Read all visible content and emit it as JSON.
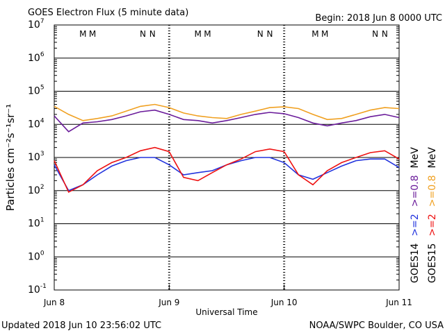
{
  "chart_data": {
    "type": "line",
    "title": "GOES Electron Flux (5 minute data)",
    "subtitle": "Begin: 2018 Jun 8 0000 UTC",
    "xlabel": "Universal Time",
    "ylabel": "Particles cm⁻²s⁻¹sr⁻¹",
    "footer_left": "Updated 2018 Jun 10 23:56:02 UTC",
    "footer_right": "NOAA/SWPC Boulder, CO USA",
    "log_scale": true,
    "grid": true,
    "threshold": 1000,
    "xlim": [
      0,
      72
    ],
    "xticks": [
      {
        "value": 0,
        "label": "Jun 8"
      },
      {
        "value": 24,
        "label": "Jun 9"
      },
      {
        "value": 48,
        "label": "Jun 10"
      },
      {
        "value": 72,
        "label": "Jun 11"
      }
    ],
    "ylim": [
      0.1,
      10000000
    ],
    "yticks": [
      {
        "value": 10000000,
        "label": "10",
        "exponent": "7"
      },
      {
        "value": 1000000,
        "label": "10",
        "exponent": "6"
      },
      {
        "value": 100000,
        "label": "10",
        "exponent": "5"
      },
      {
        "value": 10000,
        "label": "10",
        "exponent": "4"
      },
      {
        "value": 1000,
        "label": "10",
        "exponent": "3"
      },
      {
        "value": 100,
        "label": "10",
        "exponent": "2"
      },
      {
        "value": 10,
        "label": "10",
        "exponent": "1"
      },
      {
        "value": 1,
        "label": "10",
        "exponent": "0"
      },
      {
        "value": 0.1,
        "label": "10",
        "exponent": "-1"
      }
    ],
    "markers": [
      {
        "label": "M",
        "color": "#2222cc",
        "x": 6
      },
      {
        "label": "M",
        "color": "#dd1111",
        "x": 8
      },
      {
        "label": "N",
        "color": "#2222cc",
        "x": 18.5
      },
      {
        "label": "N",
        "color": "#dd1111",
        "x": 20.5
      },
      {
        "label": "M",
        "color": "#2222cc",
        "x": 30
      },
      {
        "label": "M",
        "color": "#dd1111",
        "x": 32
      },
      {
        "label": "N",
        "color": "#2222cc",
        "x": 43
      },
      {
        "label": "N",
        "color": "#dd1111",
        "x": 45
      },
      {
        "label": "M",
        "color": "#2222cc",
        "x": 54.5
      },
      {
        "label": "M",
        "color": "#dd1111",
        "x": 56.5
      },
      {
        "label": "N",
        "color": "#2222cc",
        "x": 67
      },
      {
        "label": "N",
        "color": "#dd1111",
        "x": 69
      }
    ],
    "legend_groups": [
      "GOES14",
      "GOES15"
    ],
    "legend_unit": "MeV",
    "x": [
      0,
      3,
      6,
      9,
      12,
      15,
      18,
      21,
      24,
      27,
      30,
      33,
      36,
      39,
      42,
      45,
      48,
      51,
      54,
      57,
      60,
      63,
      66,
      69,
      72
    ],
    "series": [
      {
        "name": ">=2",
        "color": "#2233dd",
        "values": [
          600,
          100,
          150,
          300,
          550,
          800,
          1000,
          1000,
          600,
          300,
          350,
          400,
          600,
          800,
          1000,
          1000,
          700,
          300,
          220,
          350,
          550,
          800,
          900,
          900,
          500
        ]
      },
      {
        "name": ">=0.8",
        "color": "#6a1b9a",
        "values": [
          18000,
          6000,
          11000,
          12000,
          14000,
          18000,
          24000,
          27000,
          20000,
          14000,
          13000,
          11000,
          13000,
          16000,
          20000,
          23000,
          21000,
          16000,
          11000,
          9000,
          11000,
          13000,
          17000,
          20000,
          16000
        ]
      },
      {
        "name": ">=2",
        "color": "#ee1111",
        "values": [
          800,
          90,
          150,
          400,
          700,
          1000,
          1600,
          2000,
          1500,
          250,
          200,
          350,
          600,
          900,
          1500,
          1800,
          1500,
          300,
          150,
          400,
          700,
          1000,
          1400,
          1600,
          900
        ]
      },
      {
        "name": ">=0.8",
        "color": "#f0a020",
        "values": [
          35000,
          20000,
          13000,
          15000,
          18000,
          25000,
          35000,
          40000,
          32000,
          22000,
          18000,
          16000,
          15000,
          20000,
          25000,
          32000,
          34000,
          30000,
          20000,
          14000,
          15000,
          20000,
          27000,
          32000,
          30000
        ]
      }
    ]
  }
}
